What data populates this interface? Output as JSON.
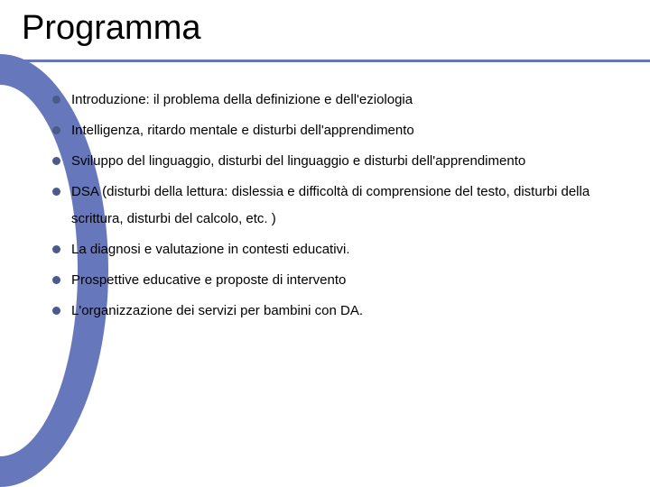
{
  "slide": {
    "title": "Programma",
    "title_color": "#000000",
    "title_fontsize": 38,
    "accent_color": "#6677bb",
    "bullet_color": "#4a5a8a",
    "bullet_fontsize": 15,
    "background_color": "#ffffff",
    "items": [
      "Introduzione: il problema della definizione e dell'eziologia",
      "Intelligenza, ritardo mentale e disturbi dell'apprendimento",
      "Sviluppo del linguaggio, disturbi del linguaggio e disturbi dell'apprendimento",
      "DSA (disturbi della lettura: dislessia e difficoltà di comprensione del testo, disturbi della scrittura, disturbi del calcolo, etc. )",
      "La diagnosi e valutazione in contesti educativi.",
      "Prospettive educative e proposte di intervento",
      "L'organizzazione dei servizi per bambini con DA."
    ]
  }
}
